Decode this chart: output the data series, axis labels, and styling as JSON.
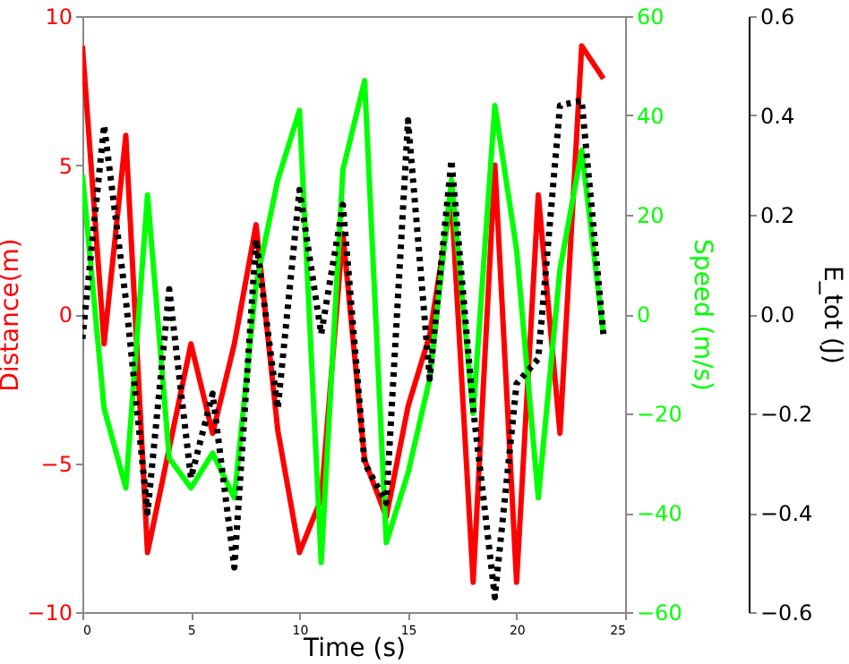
{
  "chart_data": {
    "type": "line",
    "xlabel": "Time (s)",
    "ylabel": "Distance(m)",
    "y2label": "Speed (m/s)",
    "y3label": "E_tot (J)",
    "x": [
      0,
      1,
      2,
      3,
      4,
      5,
      6,
      7,
      8,
      9,
      10,
      11,
      12,
      13,
      14,
      15,
      16,
      17,
      18,
      19,
      20,
      21,
      22,
      23,
      24
    ],
    "xlim": [
      0,
      25
    ],
    "xticks": [
      0,
      5,
      10,
      15,
      20,
      25
    ],
    "ylim": [
      -10,
      10
    ],
    "yticks": [
      -10,
      -5,
      0,
      5,
      10
    ],
    "y2lim": [
      -60,
      60
    ],
    "y2ticks": [
      -60,
      -40,
      -20,
      0,
      20,
      40,
      60
    ],
    "y3lim": [
      -0.6,
      0.6
    ],
    "y3ticks": [
      -0.6,
      -0.4,
      -0.2,
      {
        "value": 0,
        "label": "0.0"
      },
      0.2,
      0.4,
      0.6
    ],
    "grid": false,
    "marker": "none",
    "series": [
      {
        "color": "#ff0000",
        "axis": "y",
        "line_style": "solid",
        "values": [
          9.0,
          -1.0,
          6.0,
          -8.0,
          -4.5,
          -1.0,
          -4.0,
          -1.0,
          3.0,
          -3.9,
          -8.0,
          -6.2,
          2.7,
          -4.9,
          -6.8,
          -3.1,
          -0.7,
          3.9,
          -9.0,
          5.0,
          -9.0,
          4.0,
          -4.0,
          9.0,
          7.9
        ]
      },
      {
        "color": "#00ff00",
        "axis": "y2",
        "line_style": "solid",
        "values": [
          28,
          -19,
          -35,
          24,
          -29,
          -35,
          -28,
          -37,
          6,
          27,
          41,
          -50,
          29,
          47,
          -46,
          -32,
          -13,
          27,
          -20,
          42,
          13,
          -37,
          9,
          33,
          -4
        ]
      },
      {
        "color": "#000000",
        "axis": "y3",
        "line_style": "dotted",
        "values": [
          -0.05,
          0.38,
          0.03,
          -0.4,
          0.05,
          -0.33,
          -0.16,
          -0.51,
          0.15,
          -0.19,
          0.25,
          -0.04,
          0.22,
          -0.3,
          -0.38,
          0.39,
          -0.13,
          0.31,
          -0.19,
          -0.57,
          -0.14,
          -0.09,
          0.42,
          0.43,
          -0.04
        ]
      }
    ]
  }
}
